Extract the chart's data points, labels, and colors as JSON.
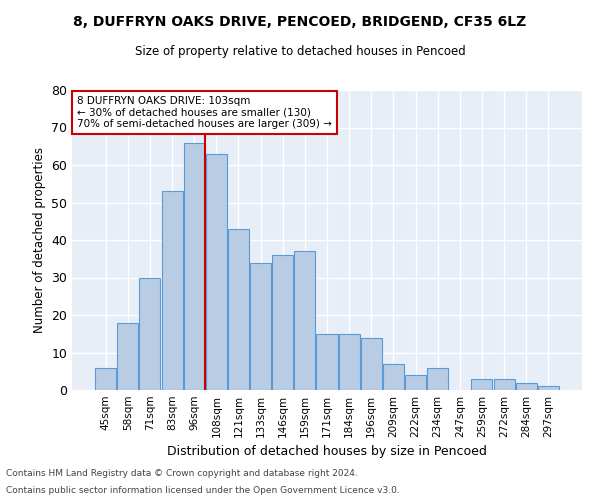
{
  "title1": "8, DUFFRYN OAKS DRIVE, PENCOED, BRIDGEND, CF35 6LZ",
  "title2": "Size of property relative to detached houses in Pencoed",
  "xlabel": "Distribution of detached houses by size in Pencoed",
  "ylabel": "Number of detached properties",
  "categories": [
    "45sqm",
    "58sqm",
    "71sqm",
    "83sqm",
    "96sqm",
    "108sqm",
    "121sqm",
    "133sqm",
    "146sqm",
    "159sqm",
    "171sqm",
    "184sqm",
    "196sqm",
    "209sqm",
    "222sqm",
    "234sqm",
    "247sqm",
    "259sqm",
    "272sqm",
    "284sqm",
    "297sqm"
  ],
  "values": [
    6,
    18,
    30,
    53,
    66,
    63,
    43,
    34,
    36,
    37,
    15,
    15,
    14,
    7,
    4,
    6,
    0,
    3,
    3,
    2,
    1
  ],
  "bar_color": "#b8cce4",
  "bar_edge_color": "#5b9bd5",
  "background_color": "#e8eef7",
  "grid_color": "#ffffff",
  "annotation_line_color": "#cc0000",
  "annotation_text_line1": "8 DUFFRYN OAKS DRIVE: 103sqm",
  "annotation_text_line2": "← 30% of detached houses are smaller (130)",
  "annotation_text_line3": "70% of semi-detached houses are larger (309) →",
  "ylim": [
    0,
    80
  ],
  "yticks": [
    0,
    10,
    20,
    30,
    40,
    50,
    60,
    70,
    80
  ],
  "footer1": "Contains HM Land Registry data © Crown copyright and database right 2024.",
  "footer2": "Contains public sector information licensed under the Open Government Licence v3.0."
}
